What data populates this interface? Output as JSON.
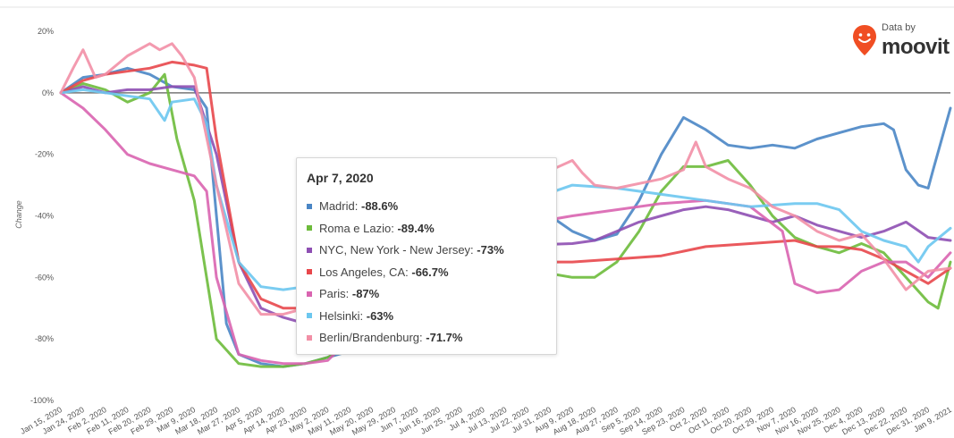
{
  "brand": {
    "prefix": "Data by",
    "name": "moovit",
    "accent": "#f04e23"
  },
  "tooltip": {
    "date": "Apr 7, 2020",
    "rows": [
      {
        "label": "Madrid:",
        "value": "-88.6%",
        "color": "#4a86c5"
      },
      {
        "label": "Roma e Lazio:",
        "value": "-89.4%",
        "color": "#6dbb3b"
      },
      {
        "label": "NYC, New York - New Jersey:",
        "value": "-73%",
        "color": "#8e4fb3"
      },
      {
        "label": "Los Angeles, CA:",
        "value": "-66.7%",
        "color": "#e8474b"
      },
      {
        "label": "Paris:",
        "value": "-87%",
        "color": "#d964b0"
      },
      {
        "label": "Helsinki:",
        "value": "-63%",
        "color": "#6cc7ef"
      },
      {
        "label": "Berlin/Brandenburg:",
        "value": "-71.7%",
        "color": "#f28fa6"
      }
    ]
  },
  "chart_data": {
    "type": "line",
    "title": "",
    "xlabel": "",
    "ylabel": "Change",
    "ylim": [
      -100,
      20
    ],
    "yticks": [
      "20%",
      "0%",
      "-20%",
      "-40%",
      "-60%",
      "-80%",
      "-100%"
    ],
    "ytick_values": [
      20,
      0,
      -20,
      -40,
      -60,
      -80,
      -100
    ],
    "xticks": [
      "Jan 15, 2020",
      "Jan 24, 2020",
      "Feb 2, 2020",
      "Feb 11, 2020",
      "Feb 20, 2020",
      "Feb 29, 2020",
      "Mar 9, 2020",
      "Mar 18, 2020",
      "Mar 27, 2020",
      "Apr 5, 2020",
      "Apr 14, 2020",
      "Apr 23, 2020",
      "May 2, 2020",
      "May 11, 2020",
      "May 20, 2020",
      "May 29, 2020",
      "Jun 7, 2020",
      "Jun 16, 2020",
      "Jun 25, 2020",
      "Jul 4, 2020",
      "Jul 13, 2020",
      "Jul 22, 2020",
      "Jul 31, 2020",
      "Aug 9, 2020",
      "Aug 18, 2020",
      "Aug 27, 2020",
      "Sep 5, 2020",
      "Sep 14, 2020",
      "Sep 23, 2020",
      "Oct 2, 2020",
      "Oct 11, 2020",
      "Oct 20, 2020",
      "Oct 29, 2020",
      "Nov 7, 2020",
      "Nov 16, 2020",
      "Nov 25, 2020",
      "Dec 4, 2020",
      "Dec 13, 2020",
      "Dec 22, 2020",
      "Dec 31, 2020",
      "Jan 9, 2021"
    ],
    "grid": false,
    "series": [
      {
        "name": "Madrid",
        "color": "#4a86c5",
        "points": [
          [
            "Jan 15, 2020",
            0
          ],
          [
            "Jan 24, 2020",
            5
          ],
          [
            "Feb 2, 2020",
            6
          ],
          [
            "Feb 11, 2020",
            8
          ],
          [
            "Feb 20, 2020",
            6
          ],
          [
            "Feb 29, 2020",
            2
          ],
          [
            "Mar 9, 2020",
            1
          ],
          [
            "Mar 14, 2020",
            -5
          ],
          [
            "Mar 18, 2020",
            -40
          ],
          [
            "Mar 22, 2020",
            -75
          ],
          [
            "Mar 27, 2020",
            -85
          ],
          [
            "Apr 5, 2020",
            -88
          ],
          [
            "Apr 14, 2020",
            -89
          ],
          [
            "Apr 23, 2020",
            -88
          ],
          [
            "May 2, 2020",
            -86
          ],
          [
            "May 11, 2020",
            -84
          ],
          [
            "May 20, 2020",
            -80
          ],
          [
            "Jun 7, 2020",
            -70
          ],
          [
            "Jun 25, 2020",
            -55
          ],
          [
            "Jul 13, 2020",
            -45
          ],
          [
            "Jul 31, 2020",
            -40
          ],
          [
            "Aug 9, 2020",
            -45
          ],
          [
            "Aug 18, 2020",
            -48
          ],
          [
            "Aug 27, 2020",
            -46
          ],
          [
            "Sep 5, 2020",
            -35
          ],
          [
            "Sep 14, 2020",
            -20
          ],
          [
            "Sep 23, 2020",
            -8
          ],
          [
            "Oct 2, 2020",
            -12
          ],
          [
            "Oct 11, 2020",
            -17
          ],
          [
            "Oct 20, 2020",
            -18
          ],
          [
            "Oct 29, 2020",
            -17
          ],
          [
            "Nov 7, 2020",
            -18
          ],
          [
            "Nov 16, 2020",
            -15
          ],
          [
            "Nov 25, 2020",
            -13
          ],
          [
            "Dec 4, 2020",
            -11
          ],
          [
            "Dec 13, 2020",
            -10
          ],
          [
            "Dec 17, 2020",
            -12
          ],
          [
            "Dec 22, 2020",
            -25
          ],
          [
            "Dec 27, 2020",
            -30
          ],
          [
            "Dec 31, 2020",
            -31
          ],
          [
            "Jan 2, 2021",
            -25
          ],
          [
            "Jan 9, 2021",
            -5
          ]
        ]
      },
      {
        "name": "Roma e Lazio",
        "color": "#6dbb3b",
        "points": [
          [
            "Jan 15, 2020",
            0
          ],
          [
            "Jan 24, 2020",
            3
          ],
          [
            "Feb 2, 2020",
            1
          ],
          [
            "Feb 11, 2020",
            -3
          ],
          [
            "Feb 20, 2020",
            0
          ],
          [
            "Feb 26, 2020",
            6
          ],
          [
            "Mar 2, 2020",
            -15
          ],
          [
            "Mar 9, 2020",
            -35
          ],
          [
            "Mar 18, 2020",
            -80
          ],
          [
            "Mar 27, 2020",
            -88
          ],
          [
            "Apr 5, 2020",
            -89
          ],
          [
            "Apr 14, 2020",
            -89
          ],
          [
            "Apr 23, 2020",
            -88
          ],
          [
            "May 2, 2020",
            -86
          ],
          [
            "May 11, 2020",
            -82
          ],
          [
            "Jun 7, 2020",
            -70
          ],
          [
            "Jul 4, 2020",
            -55
          ],
          [
            "Aug 9, 2020",
            -60
          ],
          [
            "Aug 18, 2020",
            -60
          ],
          [
            "Aug 27, 2020",
            -55
          ],
          [
            "Sep 5, 2020",
            -45
          ],
          [
            "Sep 14, 2020",
            -32
          ],
          [
            "Sep 23, 2020",
            -24
          ],
          [
            "Oct 2, 2020",
            -24
          ],
          [
            "Oct 11, 2020",
            -22
          ],
          [
            "Oct 20, 2020",
            -30
          ],
          [
            "Oct 29, 2020",
            -40
          ],
          [
            "Nov 7, 2020",
            -47
          ],
          [
            "Nov 16, 2020",
            -50
          ],
          [
            "Nov 25, 2020",
            -52
          ],
          [
            "Dec 4, 2020",
            -49
          ],
          [
            "Dec 13, 2020",
            -52
          ],
          [
            "Dec 22, 2020",
            -60
          ],
          [
            "Dec 31, 2020",
            -68
          ],
          [
            "Jan 4, 2021",
            -70
          ],
          [
            "Jan 9, 2021",
            -55
          ]
        ]
      },
      {
        "name": "NYC, New York - New Jersey",
        "color": "#8e4fb3",
        "points": [
          [
            "Jan 15, 2020",
            0
          ],
          [
            "Jan 24, 2020",
            2
          ],
          [
            "Feb 2, 2020",
            0
          ],
          [
            "Feb 11, 2020",
            1
          ],
          [
            "Feb 20, 2020",
            1
          ],
          [
            "Feb 29, 2020",
            2
          ],
          [
            "Mar 9, 2020",
            2
          ],
          [
            "Mar 18, 2020",
            -20
          ],
          [
            "Mar 27, 2020",
            -55
          ],
          [
            "Apr 5, 2020",
            -70
          ],
          [
            "Apr 14, 2020",
            -73
          ],
          [
            "Apr 23, 2020",
            -75
          ],
          [
            "May 2, 2020",
            -72
          ],
          [
            "Jun 7, 2020",
            -60
          ],
          [
            "Jul 4, 2020",
            -50
          ],
          [
            "Aug 9, 2020",
            -49
          ],
          [
            "Aug 18, 2020",
            -48
          ],
          [
            "Aug 27, 2020",
            -45
          ],
          [
            "Sep 5, 2020",
            -42
          ],
          [
            "Sep 14, 2020",
            -40
          ],
          [
            "Sep 23, 2020",
            -38
          ],
          [
            "Oct 2, 2020",
            -37
          ],
          [
            "Oct 11, 2020",
            -38
          ],
          [
            "Oct 20, 2020",
            -40
          ],
          [
            "Oct 29, 2020",
            -42
          ],
          [
            "Nov 7, 2020",
            -40
          ],
          [
            "Nov 16, 2020",
            -43
          ],
          [
            "Nov 25, 2020",
            -45
          ],
          [
            "Dec 4, 2020",
            -47
          ],
          [
            "Dec 13, 2020",
            -45
          ],
          [
            "Dec 22, 2020",
            -42
          ],
          [
            "Dec 31, 2020",
            -47
          ],
          [
            "Jan 9, 2021",
            -48
          ]
        ]
      },
      {
        "name": "Los Angeles, CA",
        "color": "#e8474b",
        "points": [
          [
            "Jan 15, 2020",
            0
          ],
          [
            "Jan 24, 2020",
            4
          ],
          [
            "Feb 2, 2020",
            6
          ],
          [
            "Feb 11, 2020",
            7
          ],
          [
            "Feb 20, 2020",
            8
          ],
          [
            "Feb 29, 2020",
            10
          ],
          [
            "Mar 9, 2020",
            9
          ],
          [
            "Mar 14, 2020",
            8
          ],
          [
            "Mar 18, 2020",
            -15
          ],
          [
            "Mar 27, 2020",
            -55
          ],
          [
            "Apr 5, 2020",
            -67
          ],
          [
            "Apr 14, 2020",
            -70
          ],
          [
            "Apr 23, 2020",
            -70
          ],
          [
            "May 2, 2020",
            -68
          ],
          [
            "Jun 7, 2020",
            -60
          ],
          [
            "Jul 4, 2020",
            -55
          ],
          [
            "Aug 9, 2020",
            -55
          ],
          [
            "Aug 27, 2020",
            -54
          ],
          [
            "Sep 14, 2020",
            -53
          ],
          [
            "Oct 2, 2020",
            -50
          ],
          [
            "Oct 20, 2020",
            -49
          ],
          [
            "Nov 7, 2020",
            -48
          ],
          [
            "Nov 16, 2020",
            -50
          ],
          [
            "Nov 25, 2020",
            -50
          ],
          [
            "Dec 4, 2020",
            -51
          ],
          [
            "Dec 13, 2020",
            -54
          ],
          [
            "Dec 22, 2020",
            -58
          ],
          [
            "Dec 31, 2020",
            -62
          ],
          [
            "Jan 9, 2021",
            -57
          ]
        ]
      },
      {
        "name": "Paris",
        "color": "#d964b0",
        "points": [
          [
            "Jan 15, 2020",
            0
          ],
          [
            "Jan 24, 2020",
            -5
          ],
          [
            "Feb 2, 2020",
            -12
          ],
          [
            "Feb 11, 2020",
            -20
          ],
          [
            "Feb 20, 2020",
            -23
          ],
          [
            "Feb 29, 2020",
            -25
          ],
          [
            "Mar 9, 2020",
            -27
          ],
          [
            "Mar 14, 2020",
            -32
          ],
          [
            "Mar 18, 2020",
            -60
          ],
          [
            "Mar 27, 2020",
            -85
          ],
          [
            "Apr 5, 2020",
            -87
          ],
          [
            "Apr 14, 2020",
            -88
          ],
          [
            "Apr 23, 2020",
            -88
          ],
          [
            "May 2, 2020",
            -87
          ],
          [
            "May 11, 2020",
            -80
          ],
          [
            "Jun 7, 2020",
            -60
          ],
          [
            "Jul 4, 2020",
            -45
          ],
          [
            "Aug 9, 2020",
            -40
          ],
          [
            "Aug 27, 2020",
            -38
          ],
          [
            "Sep 14, 2020",
            -36
          ],
          [
            "Oct 2, 2020",
            -35
          ],
          [
            "Oct 20, 2020",
            -37
          ],
          [
            "Nov 2, 2020",
            -45
          ],
          [
            "Nov 7, 2020",
            -62
          ],
          [
            "Nov 16, 2020",
            -65
          ],
          [
            "Nov 25, 2020",
            -64
          ],
          [
            "Dec 4, 2020",
            -58
          ],
          [
            "Dec 13, 2020",
            -55
          ],
          [
            "Dec 22, 2020",
            -55
          ],
          [
            "Dec 31, 2020",
            -60
          ],
          [
            "Jan 9, 2021",
            -52
          ]
        ]
      },
      {
        "name": "Helsinki",
        "color": "#6cc7ef",
        "points": [
          [
            "Jan 15, 2020",
            0
          ],
          [
            "Jan 24, 2020",
            1
          ],
          [
            "Feb 2, 2020",
            0
          ],
          [
            "Feb 11, 2020",
            -1
          ],
          [
            "Feb 20, 2020",
            -2
          ],
          [
            "Feb 26, 2020",
            -9
          ],
          [
            "Feb 29, 2020",
            -3
          ],
          [
            "Mar 9, 2020",
            -2
          ],
          [
            "Mar 14, 2020",
            -10
          ],
          [
            "Mar 18, 2020",
            -30
          ],
          [
            "Mar 27, 2020",
            -55
          ],
          [
            "Apr 5, 2020",
            -63
          ],
          [
            "Apr 14, 2020",
            -64
          ],
          [
            "Apr 23, 2020",
            -63
          ],
          [
            "May 2, 2020",
            -60
          ],
          [
            "Jun 7, 2020",
            -50
          ],
          [
            "Jul 4, 2020",
            -40
          ],
          [
            "Aug 9, 2020",
            -30
          ],
          [
            "Aug 27, 2020",
            -31
          ],
          [
            "Sep 14, 2020",
            -33
          ],
          [
            "Oct 2, 2020",
            -35
          ],
          [
            "Oct 20, 2020",
            -37
          ],
          [
            "Nov 7, 2020",
            -36
          ],
          [
            "Nov 16, 2020",
            -36
          ],
          [
            "Nov 25, 2020",
            -38
          ],
          [
            "Dec 4, 2020",
            -45
          ],
          [
            "Dec 13, 2020",
            -48
          ],
          [
            "Dec 22, 2020",
            -50
          ],
          [
            "Dec 27, 2020",
            -55
          ],
          [
            "Dec 31, 2020",
            -50
          ],
          [
            "Jan 9, 2021",
            -44
          ]
        ]
      },
      {
        "name": "Berlin/Brandenburg",
        "color": "#f28fa6",
        "points": [
          [
            "Jan 15, 2020",
            0
          ],
          [
            "Jan 20, 2020",
            8
          ],
          [
            "Jan 24, 2020",
            14
          ],
          [
            "Jan 29, 2020",
            5
          ],
          [
            "Feb 2, 2020",
            6
          ],
          [
            "Feb 11, 2020",
            12
          ],
          [
            "Feb 20, 2020",
            16
          ],
          [
            "Feb 24, 2020",
            14
          ],
          [
            "Feb 29, 2020",
            16
          ],
          [
            "Mar 4, 2020",
            12
          ],
          [
            "Mar 9, 2020",
            5
          ],
          [
            "Mar 18, 2020",
            -30
          ],
          [
            "Mar 27, 2020",
            -62
          ],
          [
            "Apr 5, 2020",
            -72
          ],
          [
            "Apr 14, 2020",
            -72
          ],
          [
            "Apr 23, 2020",
            -70
          ],
          [
            "May 2, 2020",
            -65
          ],
          [
            "Jun 7, 2020",
            -50
          ],
          [
            "Jul 4, 2020",
            -35
          ],
          [
            "Aug 9, 2020",
            -22
          ],
          [
            "Aug 13, 2020",
            -26
          ],
          [
            "Aug 18, 2020",
            -30
          ],
          [
            "Aug 27, 2020",
            -31
          ],
          [
            "Sep 14, 2020",
            -28
          ],
          [
            "Sep 23, 2020",
            -25
          ],
          [
            "Sep 28, 2020",
            -16
          ],
          [
            "Oct 2, 2020",
            -24
          ],
          [
            "Oct 11, 2020",
            -28
          ],
          [
            "Oct 20, 2020",
            -31
          ],
          [
            "Oct 29, 2020",
            -37
          ],
          [
            "Nov 7, 2020",
            -40
          ],
          [
            "Nov 16, 2020",
            -45
          ],
          [
            "Nov 25, 2020",
            -48
          ],
          [
            "Dec 4, 2020",
            -46
          ],
          [
            "Dec 13, 2020",
            -54
          ],
          [
            "Dec 22, 2020",
            -64
          ],
          [
            "Dec 31, 2020",
            -58
          ],
          [
            "Jan 9, 2021",
            -57
          ]
        ]
      }
    ]
  }
}
